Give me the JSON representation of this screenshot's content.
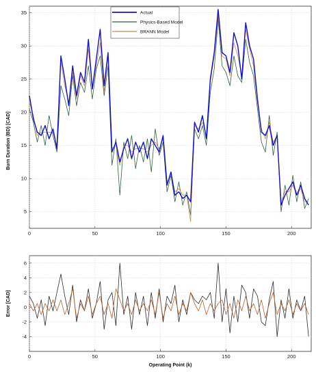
{
  "chart_data": [
    {
      "type": "line",
      "title": "",
      "xlabel": "",
      "ylabel": "Burn Duration (BD) [CAD]",
      "xlim": [
        0,
        215
      ],
      "ylim": [
        2.5,
        36
      ],
      "xticks": [
        "0",
        "50",
        "100",
        "150",
        "200"
      ],
      "yticks": [
        "5",
        "10",
        "15",
        "20",
        "25",
        "30",
        "35"
      ],
      "grid": true,
      "legend_position": "top-center",
      "series": [
        {
          "name": "Actual",
          "color": "#1010c8",
          "x": [
            0,
            3,
            6,
            9,
            12,
            15,
            18,
            21,
            24,
            27,
            30,
            33,
            36,
            39,
            42,
            45,
            48,
            51,
            54,
            57,
            60,
            63,
            66,
            69,
            72,
            75,
            78,
            81,
            84,
            87,
            90,
            93,
            96,
            99,
            102,
            105,
            108,
            111,
            114,
            117,
            120,
            123,
            126,
            129,
            132,
            135,
            138,
            141,
            144,
            147,
            150,
            153,
            156,
            159,
            162,
            165,
            168,
            171,
            174,
            177,
            180,
            183,
            186,
            189,
            192,
            195,
            198,
            201,
            204,
            207,
            210,
            213
          ],
          "values": [
            22.5,
            19.0,
            17.0,
            16.5,
            18.0,
            16.0,
            17.5,
            14.5,
            28.5,
            25.0,
            21.0,
            27.0,
            22.5,
            26.0,
            24.5,
            31.0,
            23.5,
            28.0,
            32.5,
            24.0,
            29.0,
            14.0,
            15.5,
            12.5,
            14.5,
            16.0,
            13.0,
            15.5,
            14.0,
            15.5,
            13.0,
            16.0,
            15.0,
            14.0,
            16.5,
            9.0,
            11.0,
            7.5,
            8.0,
            7.0,
            7.5,
            6.5,
            18.5,
            17.0,
            19.5,
            16.0,
            25.0,
            29.0,
            35.5,
            29.0,
            28.5,
            26.0,
            32.0,
            30.0,
            25.0,
            33.5,
            30.0,
            28.0,
            22.0,
            17.0,
            16.5,
            18.0,
            15.0,
            16.5,
            6.0,
            7.5,
            8.5,
            9.5,
            7.5,
            9.0,
            7.0,
            6.0
          ]
        },
        {
          "name": "Physics-Based Model",
          "color": "#2f5f3a",
          "x": [
            0,
            3,
            6,
            9,
            12,
            15,
            18,
            21,
            24,
            27,
            30,
            33,
            36,
            39,
            42,
            45,
            48,
            51,
            54,
            57,
            60,
            63,
            66,
            69,
            72,
            75,
            78,
            81,
            84,
            87,
            90,
            93,
            96,
            99,
            102,
            105,
            108,
            111,
            114,
            117,
            120,
            123,
            126,
            129,
            132,
            135,
            138,
            141,
            144,
            147,
            150,
            153,
            156,
            159,
            162,
            165,
            168,
            171,
            174,
            177,
            180,
            183,
            186,
            189,
            192,
            195,
            198,
            201,
            204,
            207,
            210,
            213
          ],
          "values": [
            20.5,
            18.5,
            15.5,
            18.0,
            15.0,
            19.5,
            16.5,
            14.0,
            24.0,
            22.0,
            19.5,
            25.5,
            21.0,
            24.5,
            23.0,
            27.0,
            22.0,
            26.5,
            28.5,
            22.5,
            27.0,
            12.0,
            16.0,
            7.5,
            15.5,
            13.0,
            16.5,
            11.5,
            15.0,
            12.5,
            16.0,
            11.0,
            17.5,
            13.5,
            15.5,
            8.0,
            10.5,
            6.5,
            9.5,
            6.0,
            8.0,
            4.5,
            17.5,
            16.0,
            18.0,
            15.0,
            23.0,
            26.5,
            34.0,
            27.0,
            26.0,
            24.0,
            28.5,
            25.5,
            24.5,
            31.0,
            27.5,
            25.5,
            20.5,
            15.5,
            14.0,
            19.5,
            13.5,
            17.0,
            5.0,
            9.0,
            6.0,
            10.5,
            6.5,
            9.5,
            5.5,
            7.0
          ]
        },
        {
          "name": "BRANN Model",
          "color": "#c68a5a",
          "x": [
            0,
            3,
            6,
            9,
            12,
            15,
            18,
            21,
            24,
            27,
            30,
            33,
            36,
            39,
            42,
            45,
            48,
            51,
            54,
            57,
            60,
            63,
            66,
            69,
            72,
            75,
            78,
            81,
            84,
            87,
            90,
            93,
            96,
            99,
            102,
            105,
            108,
            111,
            114,
            117,
            120,
            123,
            126,
            129,
            132,
            135,
            138,
            141,
            144,
            147,
            150,
            153,
            156,
            159,
            162,
            165,
            168,
            171,
            174,
            177,
            180,
            183,
            186,
            189,
            192,
            195,
            198,
            201,
            204,
            207,
            210,
            213
          ],
          "values": [
            21.5,
            19.5,
            16.5,
            17.0,
            17.0,
            17.0,
            17.0,
            15.0,
            27.5,
            24.0,
            21.5,
            26.0,
            22.0,
            25.5,
            24.0,
            29.5,
            23.5,
            27.0,
            30.5,
            23.0,
            28.5,
            14.5,
            15.0,
            12.0,
            15.0,
            15.0,
            14.0,
            14.5,
            14.5,
            14.5,
            14.0,
            15.0,
            15.5,
            14.5,
            16.0,
            9.5,
            10.5,
            8.0,
            8.5,
            7.5,
            7.5,
            3.5,
            18.0,
            17.5,
            18.5,
            16.5,
            24.5,
            28.5,
            34.5,
            28.5,
            28.0,
            25.5,
            30.5,
            28.5,
            25.5,
            32.5,
            29.5,
            27.0,
            21.5,
            17.5,
            16.0,
            18.5,
            15.5,
            16.5,
            6.5,
            8.0,
            8.0,
            9.0,
            7.5,
            8.5,
            6.5,
            6.5
          ]
        }
      ]
    },
    {
      "type": "line",
      "title": "",
      "xlabel": "Operating Point (k)",
      "ylabel": "Error [CAD]",
      "xlim": [
        0,
        215
      ],
      "ylim": [
        -6,
        7
      ],
      "xticks": [
        "0",
        "50",
        "100",
        "150",
        "200"
      ],
      "yticks": [
        "-4",
        "-2",
        "0",
        "2",
        "4",
        "6"
      ],
      "grid": true,
      "series": [
        {
          "name": "Physics-Based Model",
          "color": "#2a2a2a",
          "x": [
            0,
            3,
            6,
            9,
            12,
            15,
            18,
            21,
            24,
            27,
            30,
            33,
            36,
            39,
            42,
            45,
            48,
            51,
            54,
            57,
            60,
            63,
            66,
            69,
            72,
            75,
            78,
            81,
            84,
            87,
            90,
            93,
            96,
            99,
            102,
            105,
            108,
            111,
            114,
            117,
            120,
            123,
            126,
            129,
            132,
            135,
            138,
            141,
            144,
            147,
            150,
            153,
            156,
            159,
            162,
            165,
            168,
            171,
            174,
            177,
            180,
            183,
            186,
            189,
            192,
            195,
            198,
            201,
            204,
            207,
            210,
            213
          ],
          "values": [
            1.5,
            0.5,
            -1.5,
            1.0,
            -2.5,
            1.5,
            -0.5,
            2.0,
            4.5,
            1.5,
            -1.0,
            3.0,
            -2.0,
            1.0,
            -0.5,
            2.5,
            -1.5,
            0.5,
            3.5,
            -3.0,
            1.0,
            2.0,
            -2.5,
            6.0,
            -1.0,
            1.5,
            -3.0,
            2.0,
            -1.0,
            1.5,
            -2.5,
            2.0,
            -1.5,
            2.5,
            -2.0,
            1.5,
            0.5,
            3.0,
            -2.0,
            1.0,
            -1.0,
            2.0,
            1.0,
            0.5,
            1.5,
            1.0,
            2.0,
            -1.5,
            6.0,
            -2.0,
            2.5,
            -3.5,
            1.5,
            -2.0,
            3.0,
            2.0,
            -1.5,
            2.5,
            1.5,
            -2.0,
            -2.5,
            1.0,
            3.5,
            -4.0,
            1.0,
            -1.5,
            2.5,
            -1.5,
            1.0,
            -0.5,
            1.5,
            -4.0
          ]
        },
        {
          "name": "BRANN Model",
          "color": "#b8622f",
          "x": [
            0,
            3,
            6,
            9,
            12,
            15,
            18,
            21,
            24,
            27,
            30,
            33,
            36,
            39,
            42,
            45,
            48,
            51,
            54,
            57,
            60,
            63,
            66,
            69,
            72,
            75,
            78,
            81,
            84,
            87,
            90,
            93,
            96,
            99,
            102,
            105,
            108,
            111,
            114,
            117,
            120,
            123,
            126,
            129,
            132,
            135,
            138,
            141,
            144,
            147,
            150,
            153,
            156,
            159,
            162,
            165,
            168,
            171,
            174,
            177,
            180,
            183,
            186,
            189,
            192,
            195,
            198,
            201,
            204,
            207,
            210,
            213
          ],
          "values": [
            0.5,
            -0.5,
            0.5,
            -1.0,
            0.5,
            -0.5,
            1.0,
            -0.5,
            1.0,
            -1.0,
            0.5,
            2.5,
            -1.5,
            0.5,
            -0.5,
            1.5,
            -1.0,
            0.5,
            1.5,
            -1.0,
            0.5,
            -1.5,
            2.5,
            1.0,
            -0.5,
            0.5,
            -1.0,
            1.0,
            -0.5,
            0.5,
            -0.5,
            1.0,
            -1.0,
            2.0,
            -1.5,
            0.5,
            -0.5,
            1.5,
            -1.0,
            0.5,
            -0.5,
            2.0,
            0.5,
            -0.5,
            1.0,
            -1.0,
            0.5,
            -0.5,
            0.5,
            1.0,
            -1.0,
            0.5,
            -1.5,
            1.0,
            -0.5,
            1.5,
            -0.5,
            0.5,
            -1.0,
            1.0,
            -1.5,
            0.5,
            2.0,
            -1.0,
            0.5,
            -0.5,
            1.0,
            -1.0,
            0.5,
            -0.5,
            0.5,
            -1.0
          ]
        }
      ]
    }
  ]
}
